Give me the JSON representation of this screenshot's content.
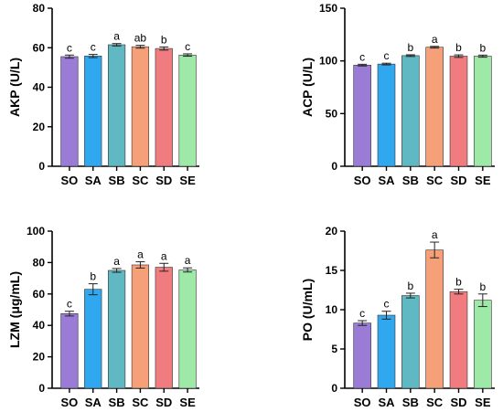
{
  "chart_data": [
    {
      "type": "bar",
      "ylabel": "AKP (U/L)",
      "categories": [
        "SO",
        "SA",
        "SB",
        "SC",
        "SD",
        "SE"
      ],
      "values": [
        55.5,
        55.8,
        61.5,
        60.5,
        59.6,
        56.3
      ],
      "errors": [
        0.8,
        0.8,
        0.6,
        0.7,
        0.8,
        0.6
      ],
      "letters": [
        "c",
        "c",
        "a",
        "ab",
        "b",
        "c"
      ],
      "colors": [
        "#9a7bd6",
        "#2fa8f0",
        "#5fb8c2",
        "#f5a078",
        "#f07c80",
        "#9ee8a8"
      ],
      "ylim": [
        0,
        80
      ],
      "yticks": [
        0,
        20,
        40,
        60,
        80
      ]
    },
    {
      "type": "bar",
      "ylabel": "ACP (U/L)",
      "categories": [
        "SO",
        "SA",
        "SB",
        "SC",
        "SD",
        "SE"
      ],
      "values": [
        96,
        97,
        105,
        113,
        104.5,
        104.5
      ],
      "errors": [
        0.8,
        0.8,
        0.8,
        0.8,
        1.2,
        1.0
      ],
      "letters": [
        "c",
        "c",
        "b",
        "a",
        "b",
        "b"
      ],
      "colors": [
        "#9a7bd6",
        "#2fa8f0",
        "#5fb8c2",
        "#f5a078",
        "#f07c80",
        "#9ee8a8"
      ],
      "ylim": [
        0,
        150
      ],
      "yticks": [
        0,
        50,
        100,
        150
      ]
    },
    {
      "type": "bar",
      "ylabel": "LZM (μg/mL)",
      "categories": [
        "SO",
        "SA",
        "SB",
        "SC",
        "SD",
        "SE"
      ],
      "values": [
        47.5,
        63,
        75,
        78.5,
        77,
        75.3
      ],
      "errors": [
        1.5,
        3.5,
        1.2,
        2.0,
        2.5,
        1.3
      ],
      "letters": [
        "c",
        "b",
        "a",
        "a",
        "a",
        "a"
      ],
      "colors": [
        "#9a7bd6",
        "#2fa8f0",
        "#5fb8c2",
        "#f5a078",
        "#f07c80",
        "#9ee8a8"
      ],
      "ylim": [
        0,
        100
      ],
      "yticks": [
        0,
        20,
        40,
        60,
        80,
        100
      ]
    },
    {
      "type": "bar",
      "ylabel": "PO (U/mL)",
      "categories": [
        "SO",
        "SA",
        "SB",
        "SC",
        "SD",
        "SE"
      ],
      "values": [
        8.3,
        9.3,
        11.8,
        17.6,
        12.3,
        11.2
      ],
      "errors": [
        0.3,
        0.5,
        0.3,
        1.0,
        0.3,
        0.8
      ],
      "letters": [
        "c",
        "c",
        "b",
        "a",
        "b",
        "b"
      ],
      "colors": [
        "#9a7bd6",
        "#2fa8f0",
        "#5fb8c2",
        "#f5a078",
        "#f07c80",
        "#9ee8a8"
      ],
      "ylim": [
        0,
        20
      ],
      "yticks": [
        0,
        5,
        10,
        15,
        20
      ]
    }
  ]
}
